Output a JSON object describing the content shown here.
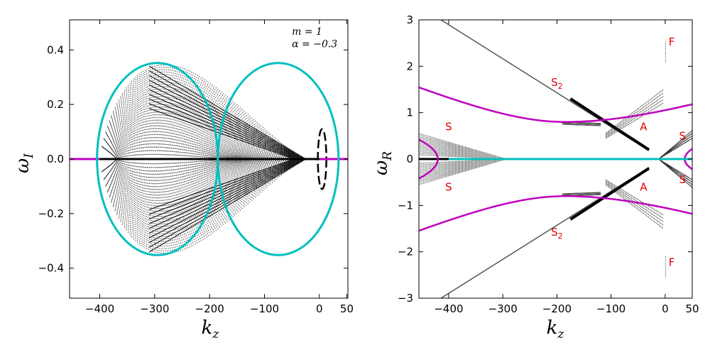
{
  "chart_data": [
    {
      "id": "left",
      "type": "scatter",
      "xlabel": "k",
      "xlabel_sub": "z",
      "ylabel": "ω",
      "ylabel_sub": "I",
      "xlim": [
        -455,
        52
      ],
      "ylim": [
        -0.51,
        0.51
      ],
      "x_ticks": [
        -400,
        -300,
        -200,
        -100,
        0,
        50
      ],
      "x_tick_labels": [
        "−400",
        "−300",
        "−200",
        "−100",
        "0",
        "50"
      ],
      "y_ticks": [
        -0.4,
        -0.2,
        0.0,
        0.2,
        0.4
      ],
      "y_tick_labels": [
        "−0.4",
        "−0.2",
        "0.0",
        "0.2",
        "0.4"
      ],
      "annotations": [
        {
          "text": "m = 1",
          "x": -50,
          "y": 0.455
        },
        {
          "text": "α = −0.3",
          "x": -50,
          "y": 0.41
        }
      ],
      "curves": [
        {
          "kind": "ellipse",
          "color": "#00bfbf",
          "center": [
            -185,
            0
          ],
          "width": 10,
          "rx": 110,
          "ry": 0.352,
          "cx_left": -295,
          "cx_right": -75
        },
        {
          "kind": "hline",
          "color": "#bf00bf",
          "y": 0
        }
      ],
      "envelope": {
        "k_min": -400,
        "k_max": -25,
        "amp": 0.345
      }
    },
    {
      "id": "right",
      "type": "scatter",
      "xlabel": "k",
      "xlabel_sub": "z",
      "ylabel": "ω",
      "ylabel_sub": "R",
      "xlim": [
        -455,
        50
      ],
      "ylim": [
        -3,
        3
      ],
      "x_ticks": [
        -400,
        -300,
        -200,
        -100,
        0,
        50
      ],
      "x_tick_labels": [
        "−400",
        "−300",
        "−200",
        "−100",
        "0",
        "50"
      ],
      "y_ticks": [
        -3,
        -2,
        -1,
        0,
        1,
        2,
        3
      ],
      "y_tick_labels": [
        "−3",
        "−2",
        "−1",
        "0",
        "1",
        "2",
        "3"
      ],
      "region_labels": [
        {
          "text": "F",
          "x": 12,
          "y": 2.45
        },
        {
          "text": "F",
          "x": 12,
          "y": -2.3
        },
        {
          "text": "S",
          "x": -200,
          "y": 1.58,
          "sub": "2"
        },
        {
          "text": "S",
          "x": -200,
          "y": -1.65,
          "sub": "2"
        },
        {
          "text": "S",
          "x": -400,
          "y": 0.62
        },
        {
          "text": "S",
          "x": -400,
          "y": -0.68
        },
        {
          "text": "S",
          "x": 32,
          "y": 0.42
        },
        {
          "text": "S",
          "x": 32,
          "y": -0.52
        },
        {
          "text": "A",
          "x": -40,
          "y": 0.62
        },
        {
          "text": "A",
          "x": -40,
          "y": -0.68
        }
      ],
      "curves": [
        {
          "kind": "hyperbola",
          "color": "#bf00bf",
          "k0": -185,
          "w0": 0.8,
          "slope_left": 0.0049,
          "slope_right": 0.0037
        },
        {
          "kind": "hline",
          "color": "#00bfbf",
          "y": 0
        }
      ]
    }
  ]
}
